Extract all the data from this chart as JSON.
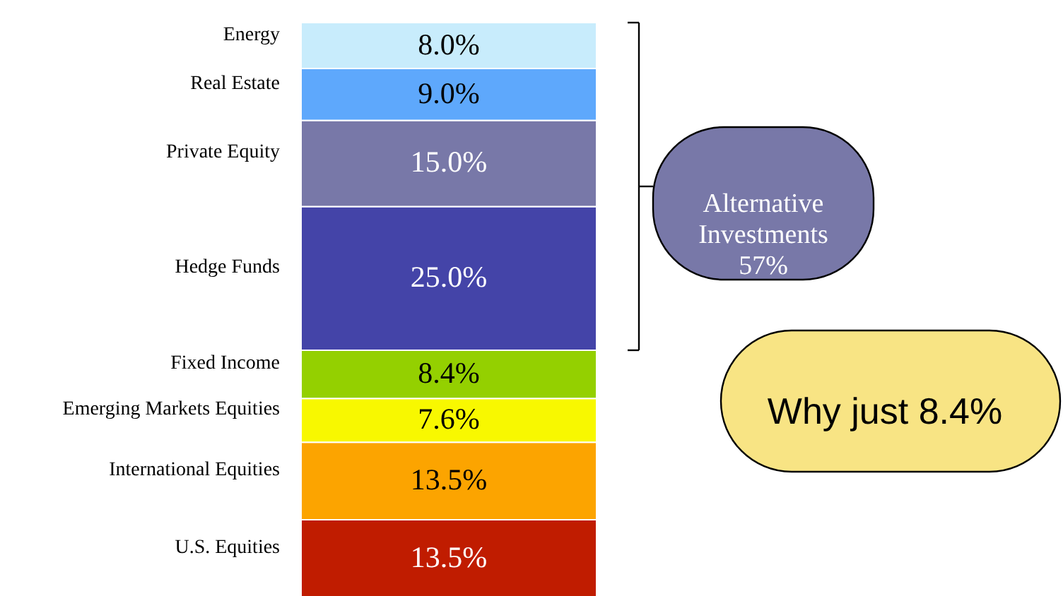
{
  "chart_data": {
    "type": "bar",
    "stacked": true,
    "categories": [
      null
    ],
    "series": [
      {
        "name": "U.S. Equities",
        "color": "#c01c00",
        "values": [
          13.5
        ],
        "value_labels": [
          "13.5%"
        ]
      },
      {
        "name": "International Equities",
        "color": "#fca400",
        "values": [
          13.5
        ],
        "value_labels": [
          "13.5%"
        ]
      },
      {
        "name": "Emerging Markets Equities",
        "color": "#f8f800",
        "values": [
          7.6
        ],
        "value_labels": [
          "7.6%"
        ]
      },
      {
        "name": "Fixed Income",
        "color": "#94d000",
        "values": [
          8.4
        ],
        "value_labels": [
          "8.4%"
        ]
      },
      {
        "name": "Hedge Funds",
        "color": "#4444a8",
        "values": [
          25.0
        ],
        "value_labels": [
          "25.0%"
        ]
      },
      {
        "name": "Private Equity",
        "color": "#7878a8",
        "values": [
          15.0
        ],
        "value_labels": [
          "15.0%"
        ]
      },
      {
        "name": "Real Estate",
        "color": "#5ea8fc",
        "values": [
          9.0
        ],
        "value_labels": [
          "9.0%"
        ]
      },
      {
        "name": "Energy",
        "color": "#c8ecfc",
        "values": [
          8.0
        ],
        "value_labels": [
          "8.0%"
        ]
      }
    ],
    "annotations": [
      "Alternative Investments 57%",
      "Why just 8.4%"
    ]
  }
}
